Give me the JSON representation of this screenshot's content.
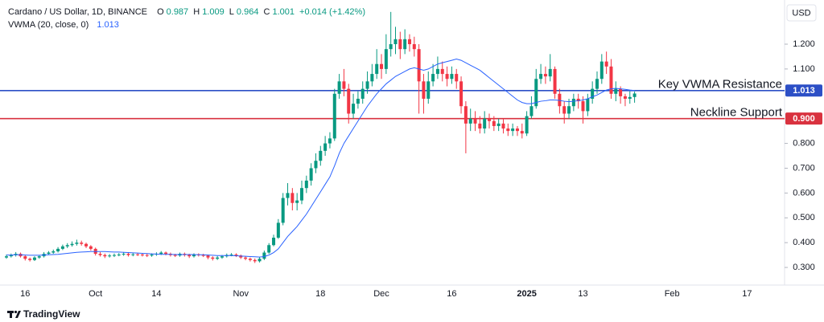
{
  "chart_data": {
    "type": "candlestick",
    "title": "Cardano / US Dollar, 1D, BINANCE",
    "ohlc_labels": [
      "O",
      "H",
      "L",
      "C"
    ],
    "change": "+0.014 (+1.42%)",
    "currency": "USD",
    "up_color": "#089981",
    "down_color": "#f23645",
    "categories": [
      null,
      null,
      null,
      null,
      "16",
      null,
      null,
      null,
      null,
      null,
      null,
      null,
      null,
      null,
      null,
      null,
      null,
      null,
      null,
      "Oct",
      null,
      null,
      null,
      null,
      null,
      null,
      null,
      null,
      null,
      null,
      null,
      null,
      "14",
      null,
      null,
      null,
      null,
      null,
      null,
      null,
      null,
      null,
      null,
      null,
      null,
      null,
      null,
      null,
      null,
      null,
      "Nov",
      null,
      null,
      null,
      null,
      null,
      null,
      null,
      null,
      null,
      null,
      null,
      null,
      null,
      null,
      null,
      null,
      "18",
      null,
      null,
      null,
      null,
      null,
      null,
      null,
      null,
      null,
      null,
      null,
      null,
      "Dec",
      null,
      null,
      null,
      null,
      null,
      null,
      null,
      null,
      null,
      null,
      null,
      null,
      null,
      null,
      "16",
      null,
      null,
      null,
      null,
      null,
      null,
      null,
      null,
      null,
      null,
      null,
      null,
      null,
      null,
      null,
      "2025",
      null,
      null,
      null,
      null,
      null,
      null,
      null,
      null,
      null,
      null,
      null,
      "13",
      null,
      null,
      null,
      null,
      null,
      null,
      null,
      null,
      null,
      null,
      null,
      null,
      null,
      null,
      null,
      null,
      null,
      null,
      "Feb",
      null,
      null,
      null,
      null,
      null,
      null,
      null,
      null,
      null,
      null,
      null,
      null,
      null,
      null,
      null,
      "17",
      null,
      null,
      null,
      null,
      null,
      null,
      null,
      null
    ],
    "open": [
      0.34,
      0.345,
      0.35,
      0.355,
      0.345,
      0.335,
      0.33,
      0.34,
      0.345,
      0.355,
      0.36,
      0.365,
      0.375,
      0.385,
      0.39,
      0.395,
      0.4,
      0.395,
      0.385,
      0.375,
      0.355,
      0.35,
      0.345,
      0.348,
      0.35,
      0.352,
      0.355,
      0.35,
      0.353,
      0.352,
      0.35,
      0.348,
      0.352,
      0.355,
      0.36,
      0.355,
      0.35,
      0.348,
      0.355,
      0.35,
      0.345,
      0.352,
      0.35,
      0.348,
      0.34,
      0.335,
      0.34,
      0.345,
      0.35,
      0.352,
      0.348,
      0.34,
      0.335,
      0.33,
      0.325,
      0.335,
      0.36,
      0.39,
      0.42,
      0.48,
      0.58,
      0.6,
      0.56,
      0.57,
      0.62,
      0.65,
      0.7,
      0.73,
      0.77,
      0.8,
      0.82,
      1.0,
      1.05,
      1.02,
      0.92,
      0.96,
      0.98,
      1.02,
      1.05,
      1.08,
      1.12,
      1.1,
      1.18,
      1.2,
      1.22,
      1.18,
      1.22,
      1.2,
      1.18,
      1.05,
      0.98,
      1.05,
      1.08,
      1.1,
      1.08,
      1.06,
      1.08,
      1.05,
      0.95,
      0.88,
      0.9,
      0.88,
      0.86,
      0.9,
      0.89,
      0.87,
      0.88,
      0.86,
      0.85,
      0.86,
      0.85,
      0.84,
      0.91,
      0.95,
      1.06,
      1.08,
      1.07,
      1.1,
      1.0,
      0.95,
      0.92,
      0.95,
      0.98,
      0.97,
      0.93,
      0.98,
      1.02,
      1.06,
      1.13,
      1.11,
      1.0,
      1.02,
      0.99,
      0.98,
      0.987,
      null,
      null,
      null,
      null,
      null,
      null,
      null,
      null,
      null,
      null,
      null,
      null,
      null,
      null,
      null,
      null,
      null,
      null,
      null,
      null,
      null,
      null,
      null,
      null,
      null,
      null,
      null,
      null,
      null,
      null,
      null,
      null
    ],
    "high": [
      0.352,
      0.356,
      0.362,
      0.36,
      0.35,
      0.34,
      0.345,
      0.35,
      0.362,
      0.366,
      0.372,
      0.382,
      0.392,
      0.398,
      0.405,
      0.412,
      0.408,
      0.4,
      0.39,
      0.38,
      0.362,
      0.356,
      0.354,
      0.356,
      0.358,
      0.362,
      0.36,
      0.358,
      0.358,
      0.357,
      0.355,
      0.357,
      0.361,
      0.366,
      0.364,
      0.36,
      0.355,
      0.36,
      0.36,
      0.355,
      0.357,
      0.357,
      0.355,
      0.352,
      0.345,
      0.346,
      0.35,
      0.356,
      0.358,
      0.357,
      0.352,
      0.345,
      0.34,
      0.336,
      0.342,
      0.368,
      0.398,
      0.432,
      0.495,
      0.6,
      0.64,
      0.62,
      0.6,
      0.65,
      0.67,
      0.72,
      0.76,
      0.79,
      0.83,
      0.845,
      1.02,
      1.08,
      1.1,
      1.04,
      1.0,
      1.01,
      1.05,
      1.09,
      1.12,
      1.18,
      1.16,
      1.24,
      1.33,
      1.27,
      1.25,
      1.26,
      1.24,
      1.23,
      1.2,
      1.08,
      1.09,
      1.12,
      1.15,
      1.13,
      1.11,
      1.11,
      1.1,
      1.07,
      0.97,
      0.94,
      0.93,
      0.91,
      0.93,
      0.92,
      0.91,
      0.9,
      0.9,
      0.88,
      0.88,
      0.87,
      0.88,
      0.93,
      0.99,
      1.1,
      1.12,
      1.11,
      1.16,
      1.11,
      1.02,
      0.97,
      0.98,
      1.0,
      1.0,
      0.99,
      1.0,
      1.05,
      1.09,
      1.16,
      1.17,
      1.14,
      1.05,
      1.03,
      1.0,
      1.01,
      1.009,
      null,
      null,
      null,
      null,
      null,
      null,
      null,
      null,
      null,
      null,
      null,
      null,
      null,
      null,
      null,
      null,
      null,
      null,
      null,
      null,
      null,
      null,
      null,
      null,
      null,
      null,
      null,
      null,
      null,
      null,
      null,
      null
    ],
    "low": [
      0.335,
      0.34,
      0.344,
      0.34,
      0.328,
      0.324,
      0.326,
      0.335,
      0.34,
      0.35,
      0.355,
      0.36,
      0.37,
      0.378,
      0.384,
      0.388,
      0.388,
      0.378,
      0.368,
      0.348,
      0.344,
      0.338,
      0.34,
      0.342,
      0.345,
      0.347,
      0.344,
      0.345,
      0.346,
      0.344,
      0.342,
      0.343,
      0.347,
      0.35,
      0.349,
      0.344,
      0.342,
      0.343,
      0.344,
      0.338,
      0.34,
      0.344,
      0.342,
      0.333,
      0.328,
      0.33,
      0.335,
      0.34,
      0.345,
      0.342,
      0.334,
      0.329,
      0.324,
      0.318,
      0.32,
      0.33,
      0.355,
      0.385,
      0.415,
      0.47,
      0.55,
      0.53,
      0.53,
      0.555,
      0.6,
      0.63,
      0.68,
      0.71,
      0.75,
      0.78,
      0.81,
      0.98,
      0.99,
      0.88,
      0.9,
      0.94,
      0.96,
      1.0,
      1.03,
      1.06,
      1.06,
      1.08,
      1.15,
      1.16,
      1.14,
      1.16,
      1.17,
      1.15,
      0.92,
      0.92,
      0.96,
      1.03,
      1.06,
      1.05,
      1.03,
      1.04,
      1.02,
      0.92,
      0.76,
      0.85,
      0.85,
      0.84,
      0.84,
      0.86,
      0.85,
      0.85,
      0.84,
      0.83,
      0.83,
      0.83,
      0.82,
      0.83,
      0.9,
      0.94,
      1.04,
      1.04,
      1.05,
      0.98,
      0.92,
      0.88,
      0.9,
      0.93,
      0.94,
      0.88,
      0.91,
      0.96,
      1.0,
      1.04,
      1.08,
      0.98,
      0.97,
      0.96,
      0.95,
      0.96,
      0.964,
      null,
      null,
      null,
      null,
      null,
      null,
      null,
      null,
      null,
      null,
      null,
      null,
      null,
      null,
      null,
      null,
      null,
      null,
      null,
      null,
      null,
      null,
      null,
      null,
      null,
      null,
      null,
      null,
      null,
      null,
      null,
      null
    ],
    "close": [
      0.345,
      0.35,
      0.355,
      0.345,
      0.335,
      0.33,
      0.34,
      0.345,
      0.355,
      0.36,
      0.365,
      0.375,
      0.385,
      0.39,
      0.395,
      0.4,
      0.395,
      0.385,
      0.375,
      0.355,
      0.35,
      0.345,
      0.348,
      0.35,
      0.352,
      0.355,
      0.35,
      0.353,
      0.352,
      0.35,
      0.348,
      0.352,
      0.355,
      0.36,
      0.355,
      0.35,
      0.348,
      0.355,
      0.35,
      0.345,
      0.352,
      0.35,
      0.348,
      0.34,
      0.335,
      0.34,
      0.345,
      0.35,
      0.352,
      0.348,
      0.34,
      0.335,
      0.33,
      0.325,
      0.335,
      0.36,
      0.39,
      0.42,
      0.48,
      0.58,
      0.6,
      0.56,
      0.57,
      0.62,
      0.65,
      0.7,
      0.73,
      0.77,
      0.8,
      0.82,
      1.0,
      1.05,
      1.02,
      0.92,
      0.96,
      0.98,
      1.02,
      1.05,
      1.08,
      1.12,
      1.1,
      1.18,
      1.2,
      1.22,
      1.18,
      1.22,
      1.2,
      1.18,
      1.05,
      0.98,
      1.05,
      1.08,
      1.1,
      1.08,
      1.06,
      1.08,
      1.05,
      0.95,
      0.88,
      0.9,
      0.88,
      0.86,
      0.9,
      0.89,
      0.87,
      0.88,
      0.86,
      0.85,
      0.86,
      0.85,
      0.84,
      0.91,
      0.95,
      1.06,
      1.08,
      1.07,
      1.1,
      1.0,
      0.95,
      0.92,
      0.95,
      0.98,
      0.97,
      0.93,
      0.98,
      1.02,
      1.06,
      1.13,
      1.11,
      1.0,
      1.02,
      0.99,
      0.98,
      0.987,
      1.001,
      null,
      null,
      null,
      null,
      null,
      null,
      null,
      null,
      null,
      null,
      null,
      null,
      null,
      null,
      null,
      null,
      null,
      null,
      null,
      null,
      null,
      null,
      null,
      null,
      null,
      null,
      null,
      null,
      null,
      null,
      null,
      null
    ],
    "series": [
      {
        "name": "VWMA (20, close, 0)",
        "color": "#2962ff",
        "values": [
          0.35,
          0.35,
          0.351,
          0.351,
          0.35,
          0.349,
          0.349,
          0.349,
          0.35,
          0.351,
          0.352,
          0.353,
          0.355,
          0.357,
          0.359,
          0.361,
          0.362,
          0.363,
          0.364,
          0.364,
          0.364,
          0.364,
          0.363,
          0.362,
          0.362,
          0.361,
          0.36,
          0.359,
          0.358,
          0.357,
          0.356,
          0.355,
          0.354,
          0.353,
          0.353,
          0.353,
          0.352,
          0.352,
          0.352,
          0.352,
          0.352,
          0.351,
          0.351,
          0.35,
          0.349,
          0.348,
          0.348,
          0.348,
          0.348,
          0.347,
          0.346,
          0.345,
          0.344,
          0.343,
          0.342,
          0.344,
          0.35,
          0.36,
          0.375,
          0.4,
          0.425,
          0.445,
          0.465,
          0.49,
          0.515,
          0.545,
          0.575,
          0.605,
          0.635,
          0.665,
          0.71,
          0.76,
          0.8,
          0.83,
          0.86,
          0.89,
          0.92,
          0.95,
          0.975,
          1.0,
          1.02,
          1.04,
          1.055,
          1.07,
          1.08,
          1.09,
          1.1,
          1.105,
          1.1,
          1.095,
          1.1,
          1.11,
          1.12,
          1.125,
          1.13,
          1.135,
          1.14,
          1.135,
          1.125,
          1.115,
          1.105,
          1.095,
          1.08,
          1.065,
          1.05,
          1.035,
          1.02,
          1.005,
          0.99,
          0.975,
          0.965,
          0.96,
          0.96,
          0.965,
          0.97,
          0.972,
          0.975,
          0.975,
          0.973,
          0.97,
          0.968,
          0.97,
          0.972,
          0.975,
          0.98,
          0.988,
          0.995,
          1.005,
          1.015,
          1.02,
          1.022,
          1.02,
          1.018,
          1.015,
          1.013,
          null,
          null,
          null,
          null,
          null,
          null,
          null,
          null,
          null,
          null,
          null,
          null,
          null,
          null,
          null,
          null,
          null,
          null,
          null,
          null,
          null,
          null,
          null,
          null,
          null,
          null,
          null,
          null,
          null,
          null,
          null,
          null
        ]
      }
    ],
    "lines": [
      {
        "label": "Key VWMA Resistance",
        "value": 1.013,
        "value_label": "1.013",
        "color": "#2c4fc6"
      },
      {
        "label": "Neckline Support",
        "value": 0.9,
        "value_label": "0.900",
        "color": "#d9323f"
      }
    ],
    "ylim": [
      0.229,
      1.378
    ],
    "yticks": [
      {
        "value": 0.3,
        "label": "0.300"
      },
      {
        "value": 0.4,
        "label": "0.400"
      },
      {
        "value": 0.5,
        "label": "0.500"
      },
      {
        "value": 0.6,
        "label": "0.600"
      },
      {
        "value": 0.7,
        "label": "0.700"
      },
      {
        "value": 0.8,
        "label": "0.800"
      },
      {
        "value": 1.1,
        "label": "1.100"
      },
      {
        "value": 1.2,
        "label": "1.200"
      }
    ]
  },
  "footer": {
    "brand": "TradingView"
  }
}
